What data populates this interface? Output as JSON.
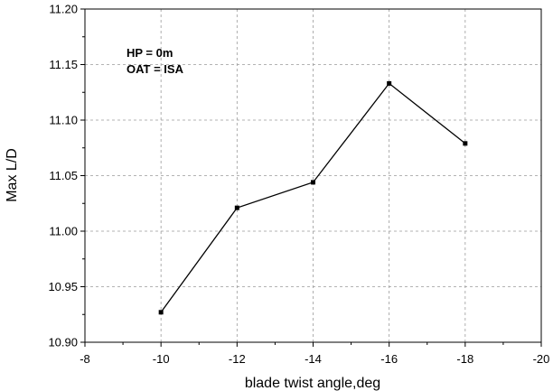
{
  "chart_data": {
    "type": "line",
    "title": "",
    "xlabel": "blade twist angle,deg",
    "ylabel": "Max L/D",
    "xlim": [
      -8,
      -20
    ],
    "ylim": [
      10.9,
      11.2
    ],
    "x_ticks": [
      "-8",
      "-10",
      "-12",
      "-14",
      "-16",
      "-18",
      "-20"
    ],
    "y_ticks": [
      "10.90",
      "10.95",
      "11.00",
      "11.05",
      "11.10",
      "11.15",
      "11.20"
    ],
    "grid": true,
    "annotations": [
      "HP = 0m",
      "OAT = ISA"
    ],
    "series": [
      {
        "name": "Max L/D",
        "x": [
          -10,
          -12,
          -14,
          -16,
          -18
        ],
        "y": [
          10.927,
          11.021,
          11.044,
          11.133,
          11.079
        ]
      }
    ],
    "colors": {
      "line": "#000000",
      "marker": "#000000",
      "grid": "#9a9a9a"
    }
  }
}
